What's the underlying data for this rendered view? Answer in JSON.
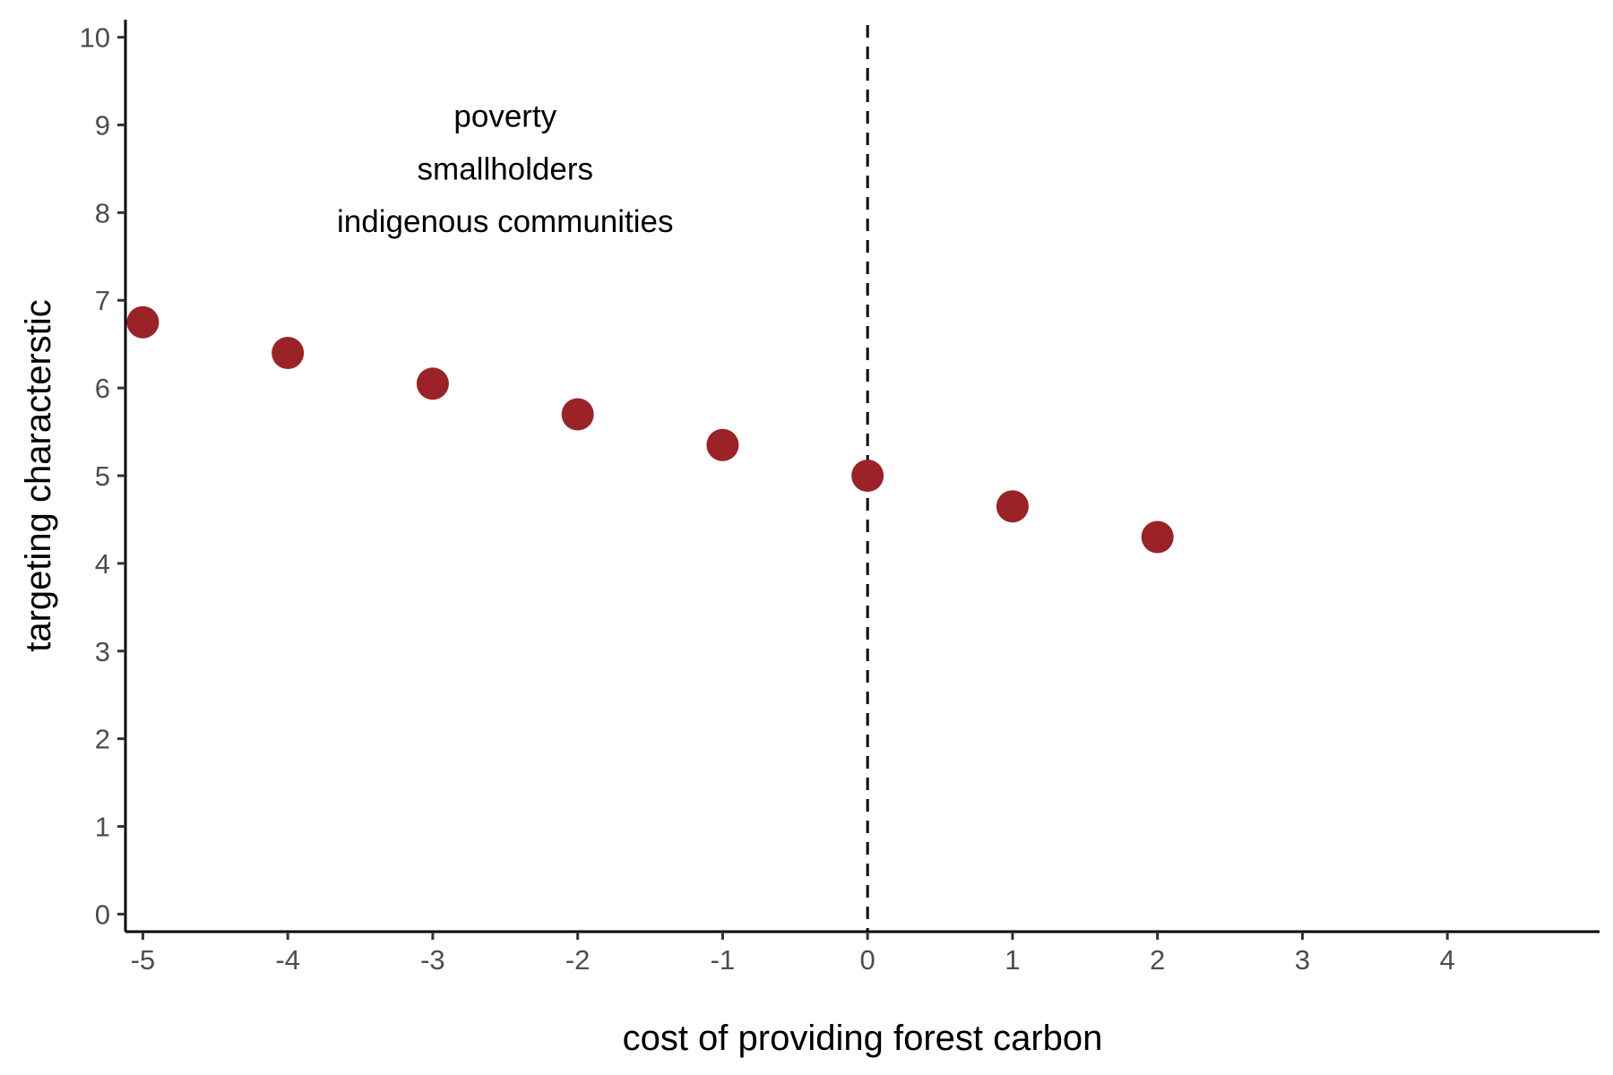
{
  "chart_data": {
    "type": "scatter",
    "title": "",
    "xlabel": "cost of providing forest carbon",
    "ylabel": "targeting characterstic",
    "xlim": [
      -5.12,
      5.05
    ],
    "ylim": [
      -0.2,
      10.2
    ],
    "x_ticks": [
      -5,
      -4,
      -3,
      -2,
      -1,
      0,
      1,
      2,
      3,
      4
    ],
    "y_ticks": [
      0,
      1,
      2,
      3,
      4,
      5,
      6,
      7,
      8,
      9,
      10
    ],
    "x_tick_labels": [
      "-5",
      "-4",
      "-3",
      "-2",
      "-1",
      "0",
      "1",
      "2",
      "3",
      "4"
    ],
    "y_tick_labels": [
      "0",
      "1",
      "2",
      "3",
      "4",
      "5",
      "6",
      "7",
      "8",
      "9",
      "10"
    ],
    "grid": false,
    "legend": "none",
    "point_color": "#9b2226",
    "series": [
      {
        "points": [
          {
            "x": -5,
            "y": 6.75
          },
          {
            "x": -4,
            "y": 6.4
          },
          {
            "x": -3,
            "y": 6.05
          },
          {
            "x": -2,
            "y": 5.7
          },
          {
            "x": -1,
            "y": 5.35
          },
          {
            "x": 0,
            "y": 5.0
          },
          {
            "x": 1,
            "y": 4.65
          },
          {
            "x": 2,
            "y": 4.3
          }
        ]
      }
    ],
    "reference_lines": [
      {
        "axis": "x",
        "value": 0,
        "style": "dashed",
        "color": "#000000"
      }
    ],
    "annotations": [
      {
        "text": "poverty",
        "x": -2.5,
        "y": 9.1
      },
      {
        "text": "smallholders",
        "x": -2.5,
        "y": 8.5
      },
      {
        "text": "indigenous communities",
        "x": -2.5,
        "y": 7.9
      }
    ]
  }
}
